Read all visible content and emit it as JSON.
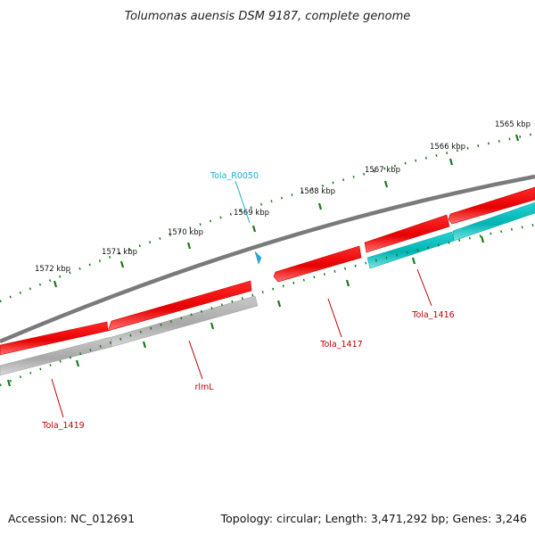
{
  "title": "Tolumonas auensis DSM 9187, complete genome",
  "footer": {
    "accession": "Accession: NC_012691",
    "summary": "Topology: circular; Length: 3,471,292 bp; Genes: 3,246"
  },
  "colors": {
    "backbone": "#808080",
    "cds": "#ff0000",
    "rrna": "#00c0c0",
    "gene": "#b0b0b0",
    "ticks": "#1a7a1a",
    "label_red": "#c00000",
    "label_cyan": "#22aacc"
  },
  "scale": {
    "tick_labels": [
      "1565 kbp",
      "1566 kbp",
      "1567 kbp",
      "1568 kbp",
      "1569 kbp",
      "1570 kbp",
      "1571 kbp",
      "1572 kbp"
    ]
  },
  "gene_labels": {
    "tola_r0050": "Tola_R0050",
    "tola_1416": "Tola_1416",
    "tola_1417": "Tola_1417",
    "rlml": "rlmL",
    "tola_1419": "Tola_1419"
  },
  "feature_types": [
    "CDS",
    "rRNA",
    "gene"
  ]
}
